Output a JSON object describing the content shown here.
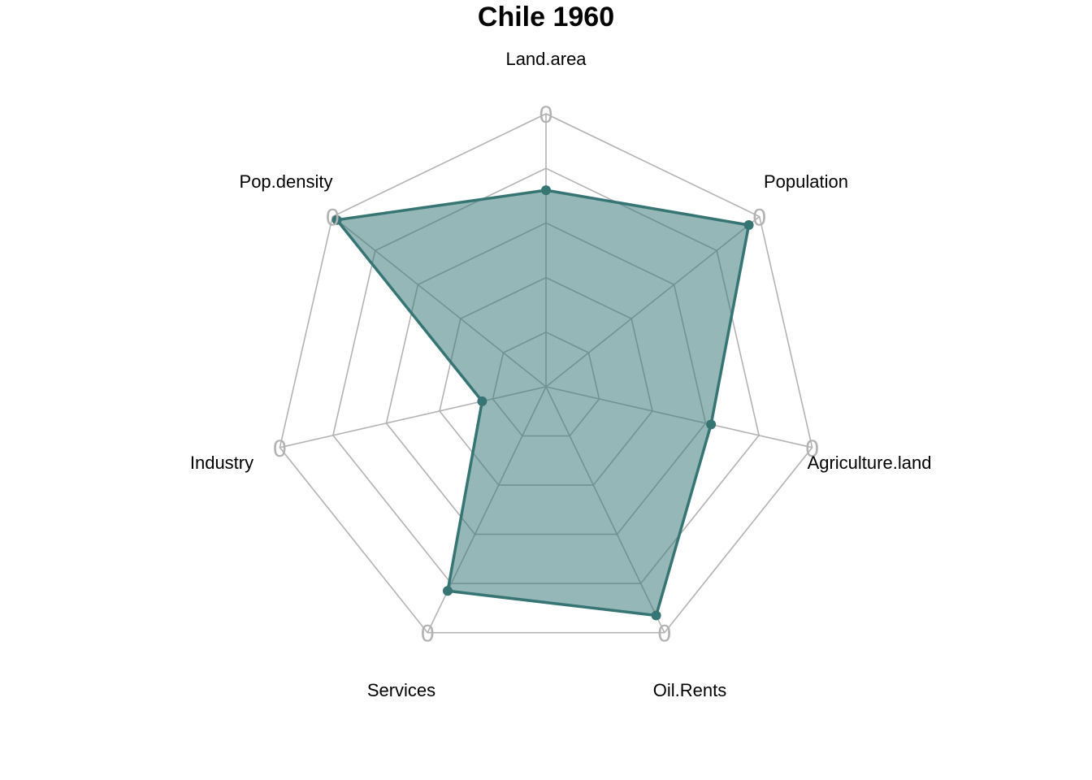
{
  "chart_data": {
    "type": "radar",
    "title": "Chile 1960",
    "axes": [
      "Land.area",
      "Population",
      "Agriculture.land",
      "Oil.Rents",
      "Services",
      "Industry",
      "Pop.density"
    ],
    "axis_tick_label": "0",
    "range": [
      0,
      1
    ],
    "grid_levels": 5,
    "grid": true,
    "series": [
      {
        "values": [
          0.72,
          0.95,
          0.62,
          0.93,
          0.83,
          0.24,
          0.98
        ]
      }
    ]
  },
  "colors": {
    "series_line": "#367574",
    "series_fill": "#367574",
    "grid_outer": "#b3b3b3",
    "grid_inner": "#7a9a9a",
    "vertex_label": "#b3b3b3"
  }
}
